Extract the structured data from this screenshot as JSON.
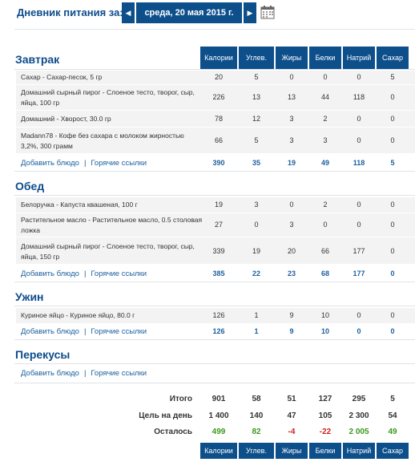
{
  "top": {
    "label": "Дневник питания за:",
    "date": "среда, 20 мая 2015 г.",
    "prev": "◀",
    "next": "▶"
  },
  "columns": [
    "Калории",
    "Углев.",
    "Жиры",
    "Белки",
    "Натрий",
    "Сахар"
  ],
  "links": {
    "add": "Добавить блюдо",
    "sep": "|",
    "quick": "Горячие ссылки"
  },
  "meals": {
    "breakfast": {
      "title": "Завтрак",
      "items": [
        {
          "name": "Сахар - Сахар-песок, 5 гр",
          "values": [
            "20",
            "5",
            "0",
            "0",
            "0",
            "5"
          ]
        },
        {
          "name": "Домашний сырный пирог - Слоеное тесто, творог, сыр, яйца, 100 гр",
          "values": [
            "226",
            "13",
            "13",
            "44",
            "118",
            "0"
          ]
        },
        {
          "name": "Домашний - Хворост, 30.0 гр",
          "values": [
            "78",
            "12",
            "3",
            "2",
            "0",
            "0"
          ]
        },
        {
          "name": "Madann78 - Кофе без сахара с молоком жирностью 3,2%, 300 грамм",
          "values": [
            "66",
            "5",
            "3",
            "3",
            "0",
            "0"
          ]
        }
      ],
      "totals": [
        "390",
        "35",
        "19",
        "49",
        "118",
        "5"
      ]
    },
    "lunch": {
      "title": "Обед",
      "items": [
        {
          "name": "Белоручка - Капуста квашеная, 100 г",
          "values": [
            "19",
            "3",
            "0",
            "2",
            "0",
            "0"
          ]
        },
        {
          "name": "Растительное масло - Растительное масло, 0.5 столовая ложка",
          "values": [
            "27",
            "0",
            "3",
            "0",
            "0",
            "0"
          ]
        },
        {
          "name": "Домашний сырный пирог - Слоеное тесто, творог, сыр, яйца, 150 гр",
          "values": [
            "339",
            "19",
            "20",
            "66",
            "177",
            "0"
          ]
        }
      ],
      "totals": [
        "385",
        "22",
        "23",
        "68",
        "177",
        "0"
      ]
    },
    "dinner": {
      "title": "Ужин",
      "items": [
        {
          "name": "Куриное яйцо - Куриное яйцо, 80.0 г",
          "values": [
            "126",
            "1",
            "9",
            "10",
            "0",
            "0"
          ]
        }
      ],
      "totals": [
        "126",
        "1",
        "9",
        "10",
        "0",
        "0"
      ]
    },
    "snacks": {
      "title": "Перекусы"
    }
  },
  "summary": {
    "total_label": "Итого",
    "total": [
      "901",
      "58",
      "51",
      "127",
      "295",
      "5"
    ],
    "goal_label": "Цель на день",
    "goal": [
      "1 400",
      "140",
      "47",
      "105",
      "2 300",
      "54"
    ],
    "left_label": "Осталось",
    "left": [
      "499",
      "82",
      "-4",
      "-22",
      "2 005",
      "49"
    ]
  },
  "colors": {
    "header": "#0d4f8b",
    "positive": "#3a9a1a",
    "negative": "#d0231c"
  }
}
